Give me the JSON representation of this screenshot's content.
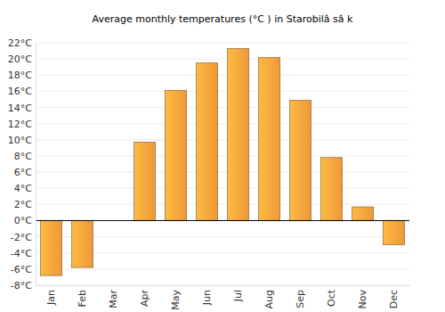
{
  "chart_data": {
    "type": "bar",
    "title": "Average monthly temperatures (°C ) in Starobilâ sâ k",
    "categories": [
      "Jan",
      "Feb",
      "Mar",
      "Apr",
      "May",
      "Jun",
      "Jul",
      "Aug",
      "Sep",
      "Oct",
      "Nov",
      "Dec"
    ],
    "values": [
      -6.8,
      -5.8,
      null,
      9.7,
      16.1,
      19.5,
      21.3,
      20.2,
      14.9,
      7.8,
      1.7,
      -3.0
    ],
    "color": "#f9a13a",
    "ylim": [
      -8,
      22
    ],
    "yticks": [
      {
        "value": -8,
        "label": "-8°C"
      },
      {
        "value": -6,
        "label": "-6°C"
      },
      {
        "value": -4,
        "label": "-4°C"
      },
      {
        "value": -2,
        "label": "-2°C"
      },
      {
        "value": 0,
        "label": "0°C"
      },
      {
        "value": 2,
        "label": "2°C"
      },
      {
        "value": 4,
        "label": "4°C"
      },
      {
        "value": 6,
        "label": "6°C"
      },
      {
        "value": 8,
        "label": "8°C"
      },
      {
        "value": 10,
        "label": "10°C"
      },
      {
        "value": 12,
        "label": "12°C"
      },
      {
        "value": 14,
        "label": "14°C"
      },
      {
        "value": 16,
        "label": "16°C"
      },
      {
        "value": 18,
        "label": "18°C"
      },
      {
        "value": 20,
        "label": "20°C"
      },
      {
        "value": 22,
        "label": "22°C"
      }
    ],
    "grid": true
  }
}
